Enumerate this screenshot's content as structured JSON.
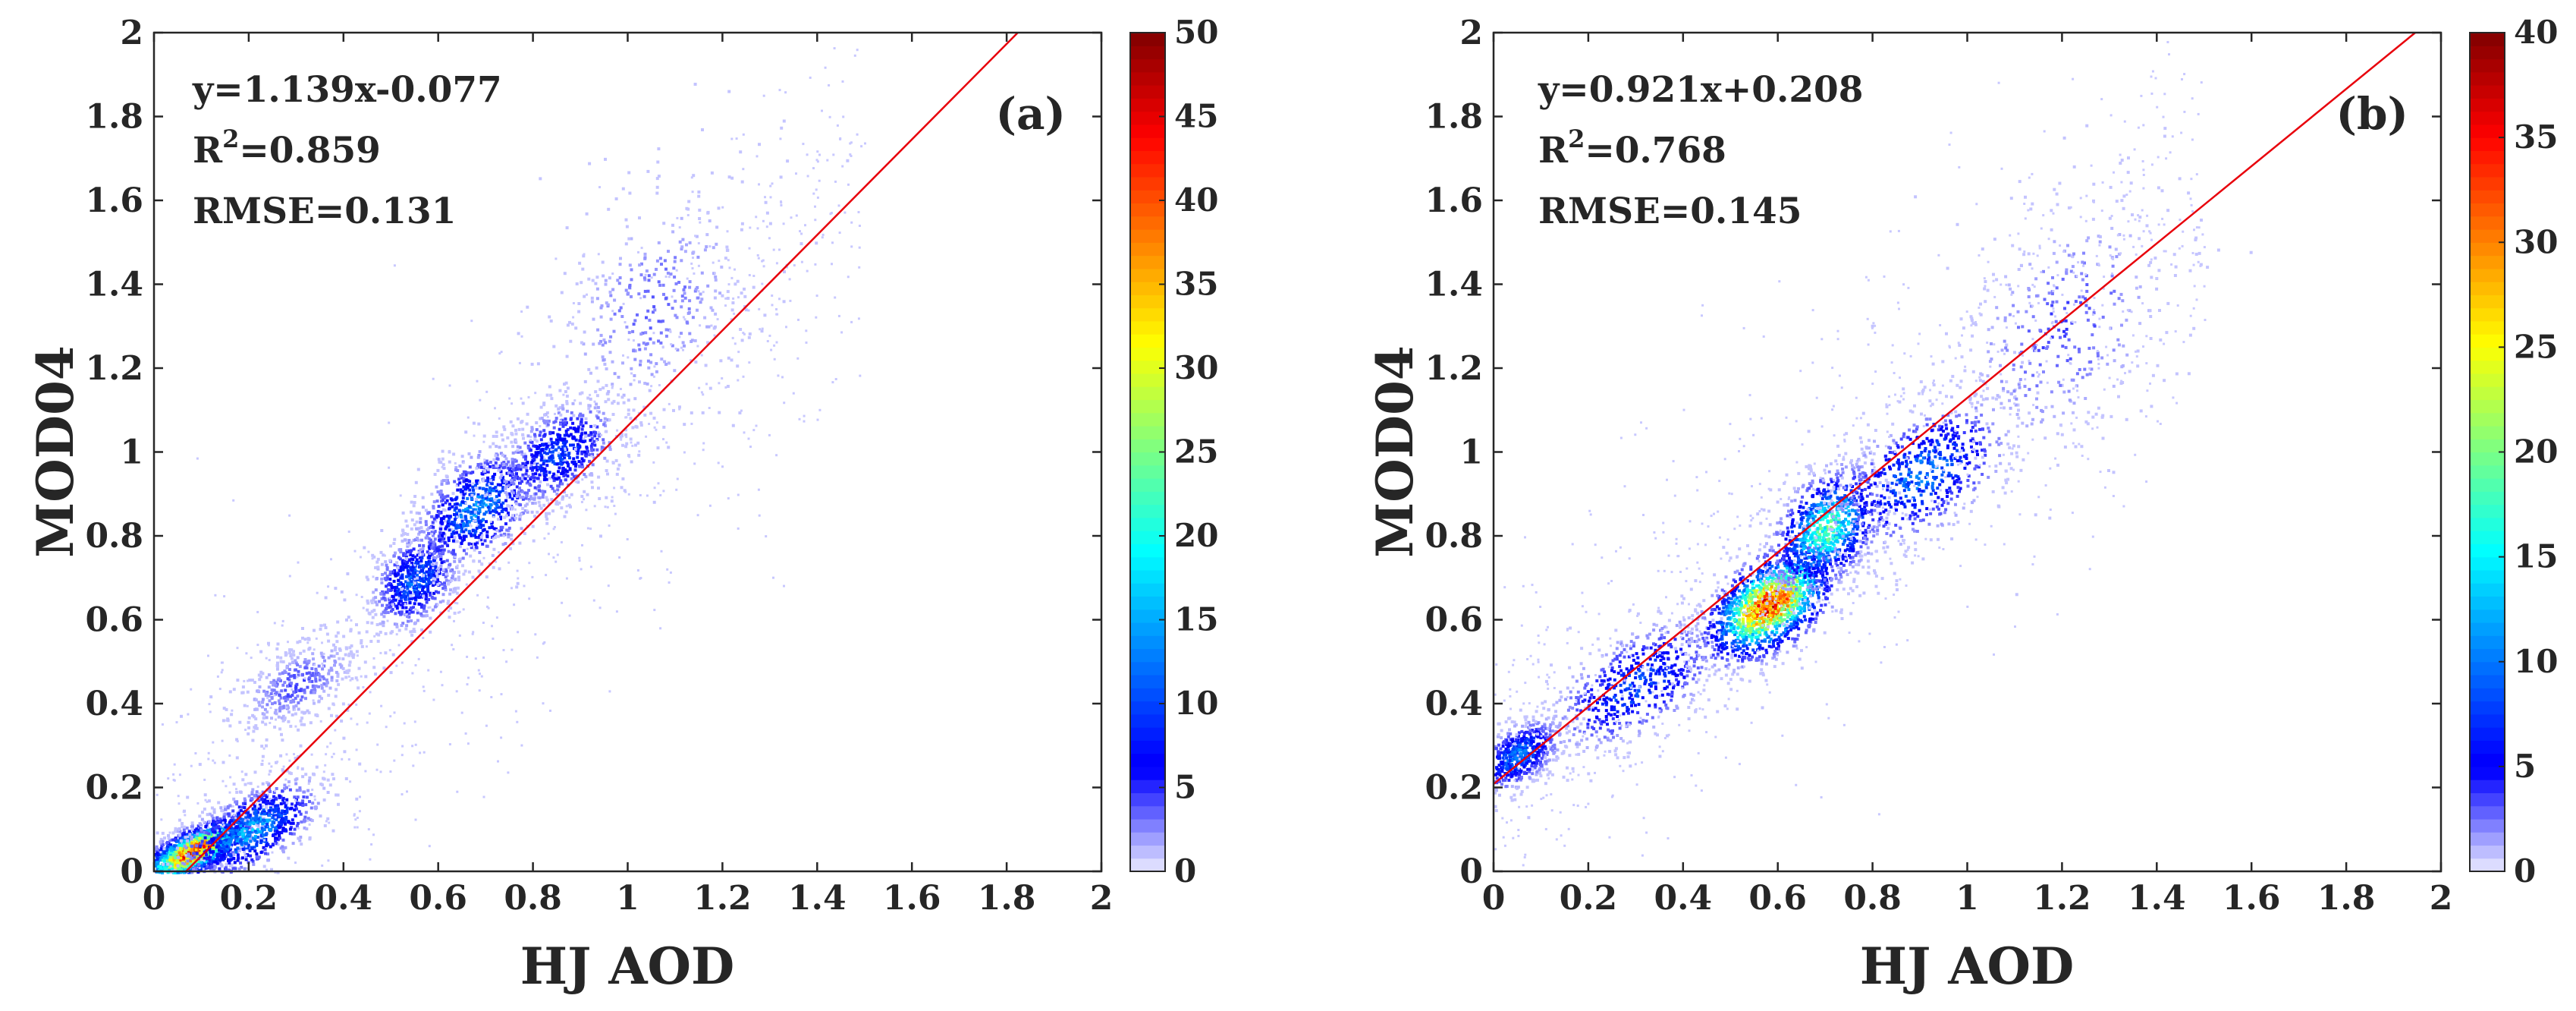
{
  "chart_data": [
    {
      "type": "heatmap",
      "panel_label": "(a)",
      "xlabel": "HJ AOD",
      "ylabel": "MOD04",
      "xlim": [
        0,
        2
      ],
      "ylim": [
        0,
        2
      ],
      "xticks": [
        "0",
        "0.2",
        "0.4",
        "0.6",
        "0.8",
        "1",
        "1.2",
        "1.4",
        "1.6",
        "1.8",
        "2"
      ],
      "yticks": [
        "0",
        "0.2",
        "0.4",
        "0.6",
        "0.8",
        "1",
        "1.2",
        "1.4",
        "1.6",
        "1.8",
        "2"
      ],
      "annotations": {
        "equation": "y=1.139x-0.077",
        "r2_prefix": "R",
        "r2_sup": "2",
        "r2_value": "=0.859",
        "rmse": "RMSE=0.131"
      },
      "fit_line": {
        "slope": 1.139,
        "intercept": -0.077,
        "color": "#e8000b"
      },
      "colorbar": {
        "min": 0,
        "max": 50,
        "ticks": [
          "0",
          "5",
          "10",
          "15",
          "20",
          "25",
          "30",
          "35",
          "40",
          "45",
          "50"
        ],
        "colormap": "jet"
      },
      "density_clusters": [
        {
          "x": 0.08,
          "y": 0.05,
          "spread_x": 0.06,
          "spread_y": 0.03,
          "peak": 50
        },
        {
          "x": 0.2,
          "y": 0.1,
          "spread_x": 0.08,
          "spread_y": 0.05,
          "peak": 18
        },
        {
          "x": 0.55,
          "y": 0.7,
          "spread_x": 0.05,
          "spread_y": 0.06,
          "peak": 14
        },
        {
          "x": 0.68,
          "y": 0.87,
          "spread_x": 0.07,
          "spread_y": 0.07,
          "peak": 16
        },
        {
          "x": 0.85,
          "y": 1.0,
          "spread_x": 0.07,
          "spread_y": 0.06,
          "peak": 12
        },
        {
          "x": 1.05,
          "y": 1.35,
          "spread_x": 0.12,
          "spread_y": 0.15,
          "peak": 4
        },
        {
          "x": 0.3,
          "y": 0.45,
          "spread_x": 0.07,
          "spread_y": 0.05,
          "peak": 5
        }
      ]
    },
    {
      "type": "heatmap",
      "panel_label": "(b)",
      "xlabel": "HJ AOD",
      "ylabel": "MOD04",
      "xlim": [
        0,
        2
      ],
      "ylim": [
        0,
        2
      ],
      "xticks": [
        "0",
        "0.2",
        "0.4",
        "0.6",
        "0.8",
        "1",
        "1.2",
        "1.4",
        "1.6",
        "1.8",
        "2"
      ],
      "yticks": [
        "0",
        "0.2",
        "0.4",
        "0.6",
        "0.8",
        "1",
        "1.2",
        "1.4",
        "1.6",
        "1.8",
        "2"
      ],
      "annotations": {
        "equation": "y=0.921x+0.208",
        "r2_prefix": "R",
        "r2_sup": "2",
        "r2_value": "=0.768",
        "rmse": "RMSE=0.145"
      },
      "fit_line": {
        "slope": 0.921,
        "intercept": 0.208,
        "color": "#e8000b"
      },
      "colorbar": {
        "min": 0,
        "max": 40,
        "ticks": [
          "0",
          "5",
          "10",
          "15",
          "20",
          "25",
          "30",
          "35",
          "40"
        ],
        "colormap": "jet"
      },
      "density_clusters": [
        {
          "x": 0.05,
          "y": 0.28,
          "spread_x": 0.05,
          "spread_y": 0.04,
          "peak": 12
        },
        {
          "x": 0.3,
          "y": 0.45,
          "spread_x": 0.1,
          "spread_y": 0.07,
          "peak": 10
        },
        {
          "x": 0.58,
          "y": 0.64,
          "spread_x": 0.07,
          "spread_y": 0.06,
          "peak": 40
        },
        {
          "x": 0.7,
          "y": 0.82,
          "spread_x": 0.06,
          "spread_y": 0.07,
          "peak": 22
        },
        {
          "x": 0.9,
          "y": 0.95,
          "spread_x": 0.1,
          "spread_y": 0.08,
          "peak": 12
        },
        {
          "x": 1.2,
          "y": 1.3,
          "spread_x": 0.13,
          "spread_y": 0.16,
          "peak": 4
        }
      ]
    }
  ]
}
